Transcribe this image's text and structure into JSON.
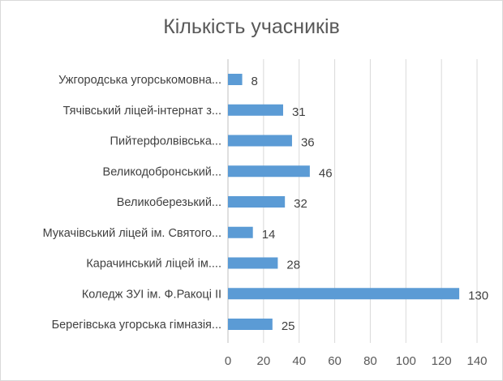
{
  "chart_data": {
    "type": "bar",
    "orientation": "horizontal",
    "title": "Кількість учасників",
    "categories": [
      "Ужгородська угорськомовна...",
      "Тячівський ліцей-інтернат з...",
      "Пийтерфолвівська...",
      "Великодобронський...",
      "Великоберезький...",
      "Мукачівський ліцей ім. Святого...",
      "Карачинський ліцей ім....",
      "Коледж ЗУІ ім. Ф.Ракоці ІІ",
      "Берегівська угорська гімназія..."
    ],
    "values": [
      8,
      31,
      36,
      46,
      32,
      14,
      28,
      130,
      25
    ],
    "xlim": [
      0,
      140
    ],
    "xticks": [
      "0",
      "20",
      "40",
      "60",
      "80",
      "100",
      "120",
      "140"
    ],
    "grid": true,
    "data_labels": true,
    "bar_color": "#5b9bd5"
  }
}
